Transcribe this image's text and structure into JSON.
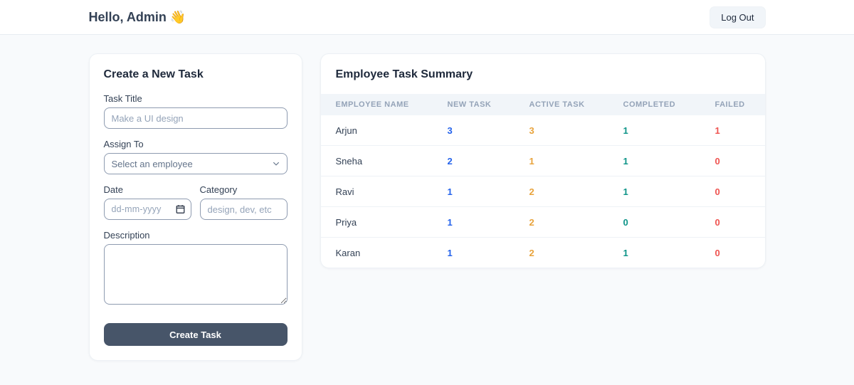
{
  "header": {
    "greeting": "Hello, Admin 👋",
    "logout_label": "Log Out"
  },
  "form": {
    "title": "Create a New Task",
    "fields": {
      "task_title": {
        "label": "Task Title",
        "placeholder": "Make a UI design"
      },
      "assign_to": {
        "label": "Assign To",
        "selected_option": "Select an employee"
      },
      "date": {
        "label": "Date",
        "placeholder": "dd-mm-yyyy"
      },
      "category": {
        "label": "Category",
        "placeholder": "design, dev, etc"
      },
      "description": {
        "label": "Description"
      }
    },
    "submit_label": "Create Task"
  },
  "summary": {
    "title": "Employee Task Summary",
    "columns": [
      "Employee Name",
      "New Task",
      "Active Task",
      "Completed",
      "Failed"
    ],
    "rows": [
      {
        "name": "Arjun",
        "new_task": "3",
        "active_task": "3",
        "completed": "1",
        "failed": "1"
      },
      {
        "name": "Sneha",
        "new_task": "2",
        "active_task": "1",
        "completed": "1",
        "failed": "0"
      },
      {
        "name": "Ravi",
        "new_task": "1",
        "active_task": "2",
        "completed": "1",
        "failed": "0"
      },
      {
        "name": "Priya",
        "new_task": "1",
        "active_task": "2",
        "completed": "0",
        "failed": "0"
      },
      {
        "name": "Karan",
        "new_task": "1",
        "active_task": "2",
        "completed": "1",
        "failed": "0"
      }
    ],
    "value_colors": {
      "new_task": "#2563eb",
      "active_task": "#e8a33c",
      "completed": "#0d9488",
      "failed": "#ef5350"
    }
  }
}
